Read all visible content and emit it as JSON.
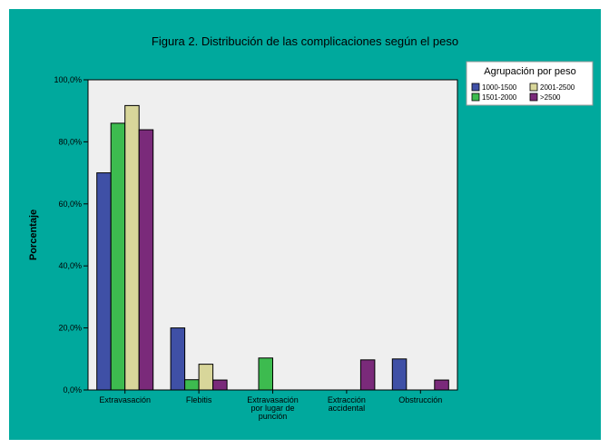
{
  "chart_data": {
    "type": "bar",
    "title": "Figura 2. Distribución de las complicaciones según el peso",
    "ylabel": "Porcentaje",
    "xlabel": "",
    "ylim": [
      0,
      100
    ],
    "yticks": [
      "0,0%",
      "20,0%",
      "40,0%",
      "60,0%",
      "80,0%",
      "100,0%"
    ],
    "ytick_values": [
      0,
      20,
      40,
      60,
      80,
      100
    ],
    "categories": [
      [
        "Extravasación"
      ],
      [
        "Flebitis"
      ],
      [
        "Extravasación",
        "por lugar de",
        "punción"
      ],
      [
        "Extracción",
        "accidental"
      ],
      [
        "Obstrucción"
      ]
    ],
    "series": [
      {
        "name": "1000-1500",
        "color": "#3f50a6",
        "values": [
          70,
          20,
          0,
          0,
          10
        ]
      },
      {
        "name": "1501-2000",
        "color": "#3dbb4f",
        "values": [
          86,
          3.3,
          10.3,
          0,
          0
        ]
      },
      {
        "name": "2001-2500",
        "color": "#d8d69a",
        "values": [
          91.7,
          8.3,
          0,
          0,
          0
        ]
      },
      {
        "name": ">2500",
        "color": "#7a2a7a",
        "values": [
          83.9,
          3.2,
          0,
          9.7,
          3.2
        ]
      }
    ],
    "legend": {
      "title": "Agrupación por peso",
      "placement": "top-right",
      "order": [
        0,
        2,
        1,
        3
      ]
    },
    "grid": false,
    "plot_background": "#efefef",
    "figure_background": "#00a99d"
  }
}
